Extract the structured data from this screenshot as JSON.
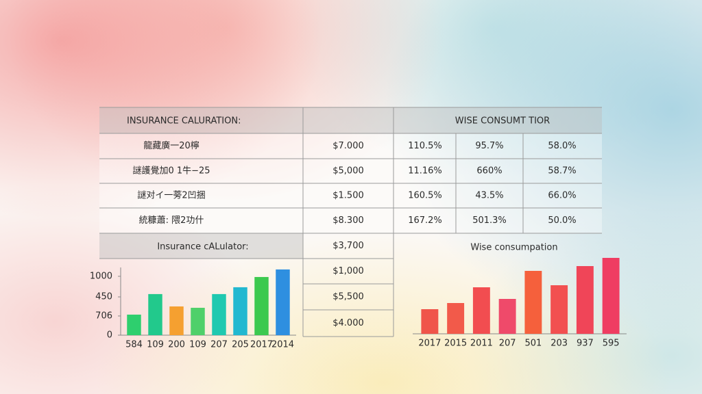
{
  "table": {
    "header_left": "INSURANCE CALURATION:",
    "header_right": "WISE CONSUMT TIOR",
    "rows": [
      [
        "龍藏廣一20檸",
        "$7.000",
        "110.5%",
        "95.7%",
        "58.0%"
      ],
      [
        "謎護覺加0 1牛−25",
        "$5,000",
        "11.16%",
        "660%",
        "58.7%"
      ],
      [
        "謎对イ一蒡2凹捆",
        "$1.500",
        "160.5%",
        "43.5%",
        "66.0%"
      ],
      [
        "統糠蕭: 隈2功什",
        "$8.300",
        "167.2%",
        "501.3%",
        "50.0%"
      ]
    ],
    "calculator_title": "Insurance cALulator:",
    "calculator_amounts": [
      "$3,700",
      "$1,000",
      "$5,500",
      "$4.000"
    ],
    "consumption_title": "Wise consumpation"
  },
  "chart_data": [
    {
      "type": "bar",
      "categories": [
        "584",
        "109",
        "200",
        "109",
        "207",
        "205",
        "2017",
        "2014"
      ],
      "values": [
        349,
        698,
        488,
        465,
        698,
        814,
        988,
        1116
      ],
      "colors": [
        "#2ecf6e",
        "#22c98c",
        "#f5a030",
        "#4fd06a",
        "#1fc9b0",
        "#22b8d0",
        "#3cc94e",
        "#2e8fe0"
      ],
      "ylim": [
        0,
        1150
      ],
      "yticks": [
        0,
        {
          "value": 326,
          "label": "706"
        },
        {
          "value": 650,
          "label": "450"
        },
        1000
      ]
    },
    {
      "type": "bar",
      "categories": [
        "2017",
        "2015",
        "2011",
        "207",
        "501",
        "203",
        "937",
        "595"
      ],
      "values": [
        36,
        45,
        68,
        51,
        92,
        71,
        99,
        111
      ],
      "colors": [
        "#f0554a",
        "#f25a4a",
        "#f24d50",
        "#ef4a6a",
        "#f5603c",
        "#f25050",
        "#f04558",
        "#ef3d62"
      ],
      "ylim": [
        0,
        120
      ]
    }
  ]
}
